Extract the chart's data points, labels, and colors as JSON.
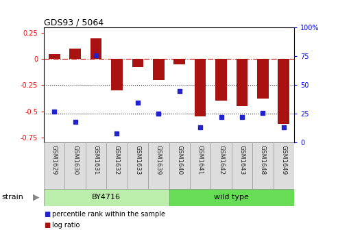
{
  "title": "GDS93 / 5064",
  "samples": [
    "GSM1629",
    "GSM1630",
    "GSM1631",
    "GSM1632",
    "GSM1633",
    "GSM1639",
    "GSM1640",
    "GSM1641",
    "GSM1642",
    "GSM1643",
    "GSM1648",
    "GSM1649"
  ],
  "log_ratio": [
    0.05,
    0.1,
    0.2,
    -0.3,
    -0.08,
    -0.2,
    -0.05,
    -0.55,
    -0.4,
    -0.45,
    -0.38,
    -0.62
  ],
  "percentile_rank": [
    27,
    18,
    76,
    8,
    35,
    25,
    45,
    13,
    22,
    22,
    26,
    13
  ],
  "bar_color": "#aa1111",
  "dot_color": "#2222cc",
  "hline_color": "#cc2222",
  "dotline_color": "#222222",
  "ylim_left": [
    -0.8,
    0.3
  ],
  "ylim_right": [
    0,
    100
  ],
  "yticks_left": [
    -0.75,
    -0.5,
    -0.25,
    0,
    0.25
  ],
  "yticks_right": [
    0,
    25,
    50,
    75,
    100
  ],
  "strain_groups": [
    {
      "label": "BY4716",
      "start": 0,
      "end": 6,
      "color": "#bbeeaa"
    },
    {
      "label": "wild type",
      "start": 6,
      "end": 12,
      "color": "#66dd55"
    }
  ],
  "strain_label": "strain",
  "legend_items": [
    {
      "label": "log ratio",
      "color": "#aa1111"
    },
    {
      "label": "percentile rank within the sample",
      "color": "#2222cc"
    }
  ],
  "bg_color": "#ffffff",
  "plot_bg_color": "#ffffff",
  "bar_width": 0.55,
  "dot_size": 18
}
